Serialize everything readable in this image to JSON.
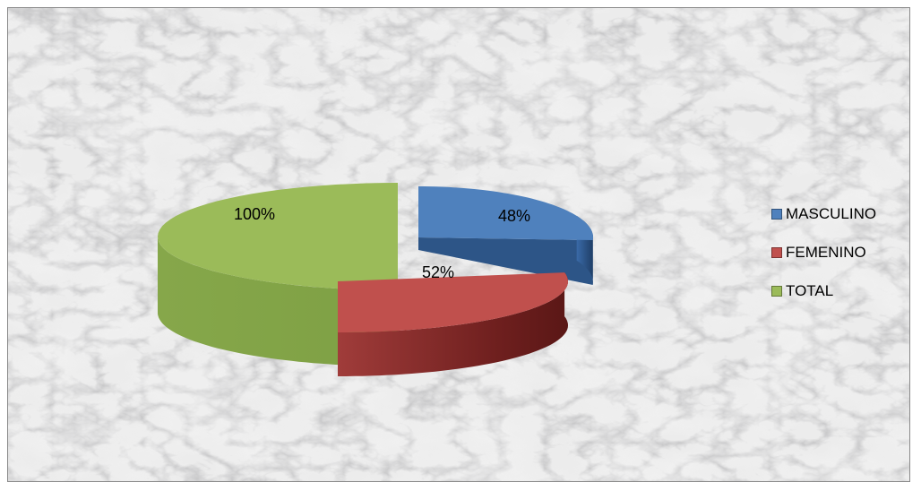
{
  "chart_data": {
    "type": "pie",
    "style": "3d-exploded",
    "title": "",
    "slices": [
      {
        "label": "MASCULINO",
        "value": 48,
        "display": "48%",
        "color": "#4f81bd",
        "side_color": "#2a4f7f"
      },
      {
        "label": "FEMENINO",
        "value": 52,
        "display": "52%",
        "color": "#c0504d",
        "side_color": "#7a2624"
      },
      {
        "label": "TOTAL",
        "value": 100,
        "display": "100%",
        "color": "#9bbb59",
        "side_color": "#6a8a30"
      }
    ],
    "legend_position": "right",
    "background": "marble texture"
  }
}
